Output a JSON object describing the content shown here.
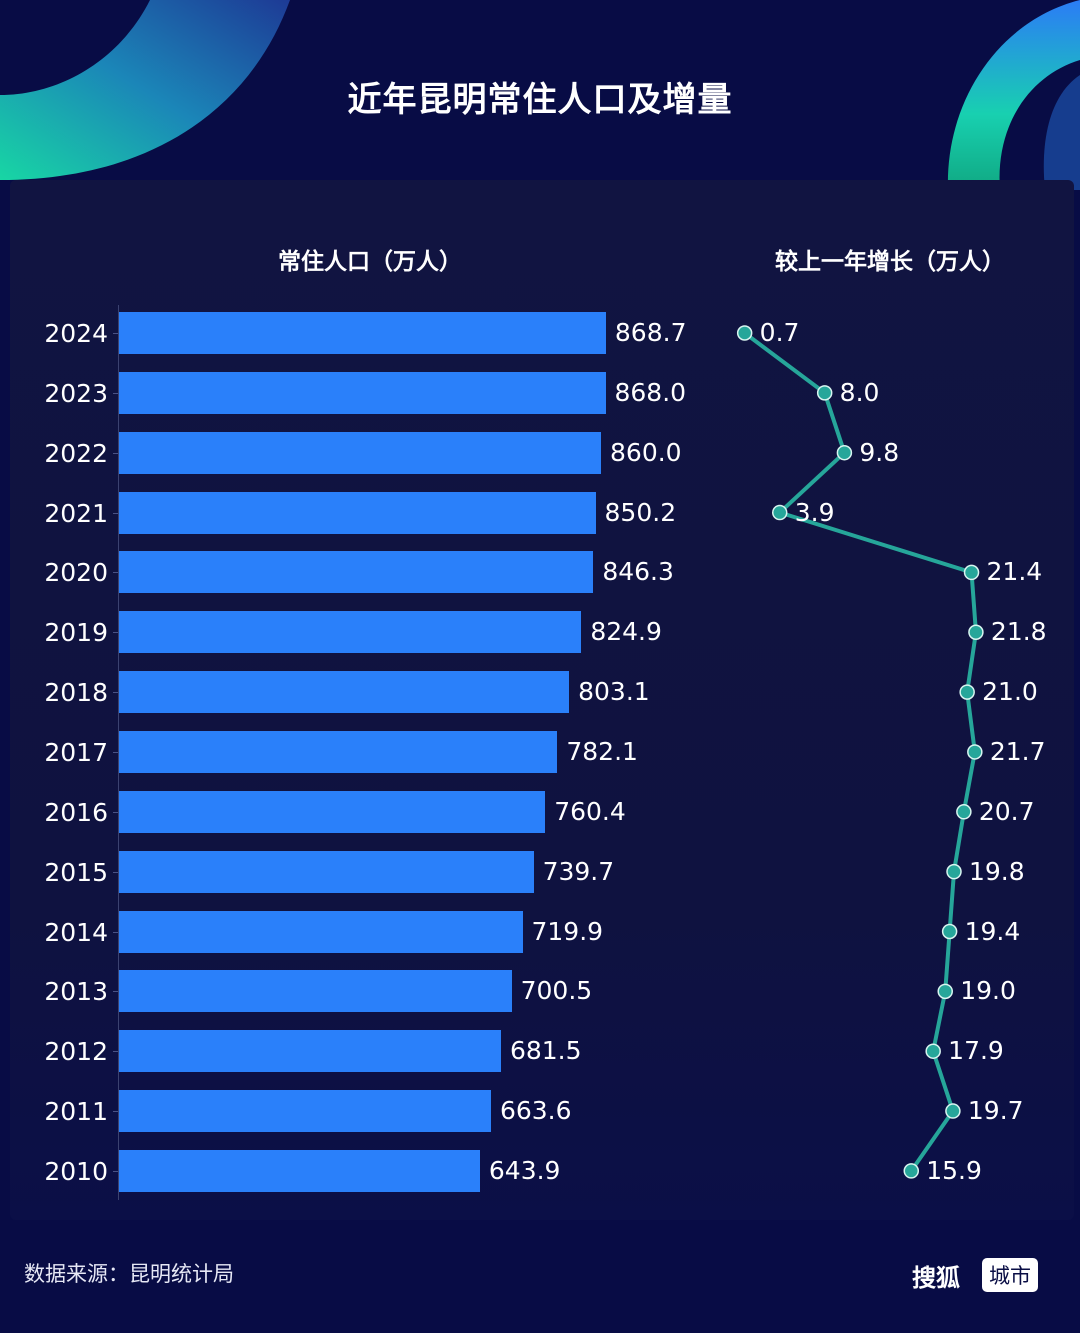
{
  "title": "近年昆明常住人口及增量",
  "left_header": "常住人口（万人）",
  "right_header": "较上一年增长（万人）",
  "footer": {
    "source": "数据来源：昆明统计局",
    "logo_text": "搜狐",
    "logo_badge": "城市"
  },
  "colors": {
    "background": "#080c45",
    "panel": "#111441",
    "bar": "#2a80fa",
    "line": "#26a69a",
    "text": "#ffffff"
  },
  "rows": [
    {
      "year": "2024",
      "pop": "868.7",
      "inc": "0.7"
    },
    {
      "year": "2023",
      "pop": "868.0",
      "inc": "8.0"
    },
    {
      "year": "2022",
      "pop": "860.0",
      "inc": "9.8"
    },
    {
      "year": "2021",
      "pop": "850.2",
      "inc": "3.9"
    },
    {
      "year": "2020",
      "pop": "846.3",
      "inc": "21.4"
    },
    {
      "year": "2019",
      "pop": "824.9",
      "inc": "21.8"
    },
    {
      "year": "2018",
      "pop": "803.1",
      "inc": "21.0"
    },
    {
      "year": "2017",
      "pop": "782.1",
      "inc": "21.7"
    },
    {
      "year": "2016",
      "pop": "760.4",
      "inc": "20.7"
    },
    {
      "year": "2015",
      "pop": "739.7",
      "inc": "19.8"
    },
    {
      "year": "2014",
      "pop": "719.9",
      "inc": "19.4"
    },
    {
      "year": "2013",
      "pop": "700.5",
      "inc": "19.0"
    },
    {
      "year": "2012",
      "pop": "681.5",
      "inc": "17.9"
    },
    {
      "year": "2011",
      "pop": "663.6",
      "inc": "19.7"
    },
    {
      "year": "2010",
      "pop": "643.9",
      "inc": "15.9"
    }
  ],
  "chart_data": [
    {
      "type": "bar",
      "orientation": "horizontal",
      "title": "常住人口（万人）",
      "categories": [
        "2024",
        "2023",
        "2022",
        "2021",
        "2020",
        "2019",
        "2018",
        "2017",
        "2016",
        "2015",
        "2014",
        "2013",
        "2012",
        "2011",
        "2010"
      ],
      "values": [
        868.7,
        868.0,
        860.0,
        850.2,
        846.3,
        824.9,
        803.1,
        782.1,
        760.4,
        739.7,
        719.9,
        700.5,
        681.5,
        663.6,
        643.9
      ],
      "xlabel": "",
      "ylabel": "",
      "grid": false,
      "data_labels": true
    },
    {
      "type": "line",
      "orientation": "vertical",
      "title": "较上一年增长（万人）",
      "categories": [
        "2024",
        "2023",
        "2022",
        "2021",
        "2020",
        "2019",
        "2018",
        "2017",
        "2016",
        "2015",
        "2014",
        "2013",
        "2012",
        "2011",
        "2010"
      ],
      "values": [
        0.7,
        8.0,
        9.8,
        3.9,
        21.4,
        21.8,
        21.0,
        21.7,
        20.7,
        19.8,
        19.4,
        19.0,
        17.9,
        19.7,
        15.9
      ],
      "xlabel": "",
      "ylabel": "",
      "grid": false,
      "data_labels": true
    }
  ]
}
